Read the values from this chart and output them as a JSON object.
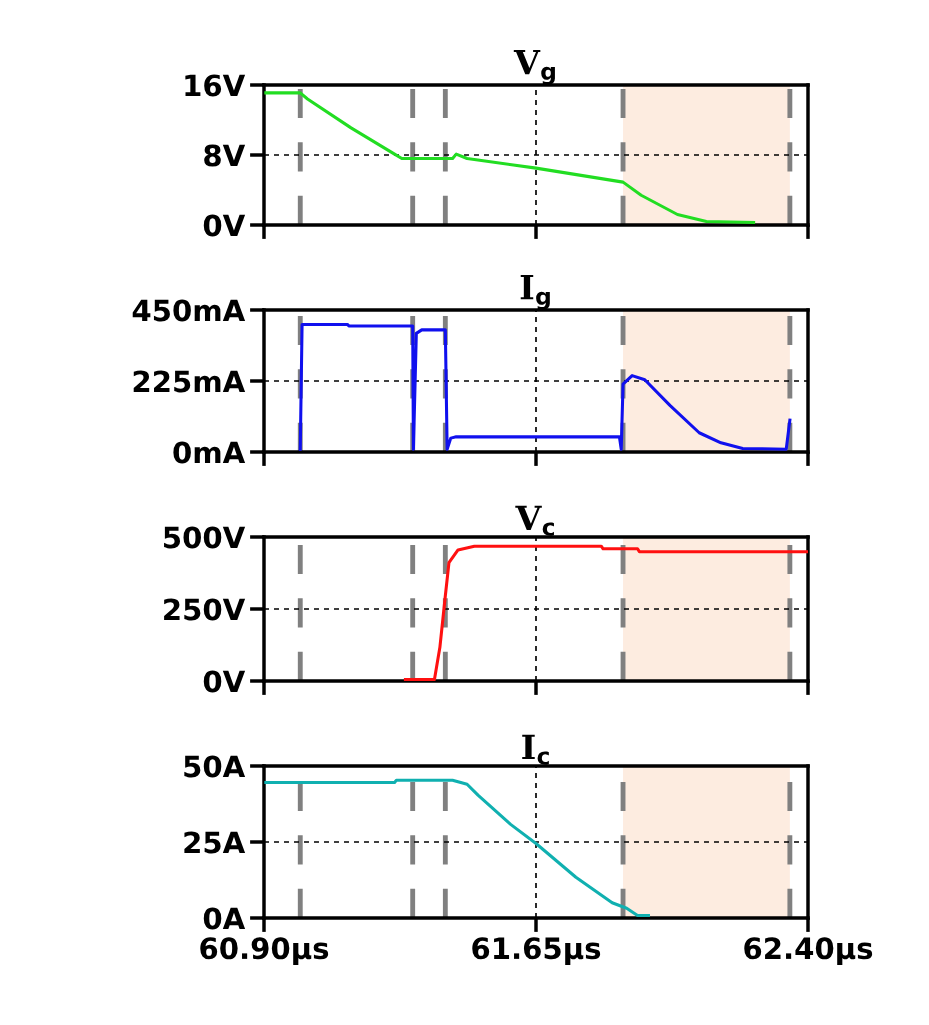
{
  "chart_data": [
    {
      "type": "line",
      "title": "V$_{g}$",
      "xlim": [
        60.9,
        62.4
      ],
      "xticks": [
        {
          "value": 60.9,
          "label": null
        },
        {
          "value": 61.65,
          "label": null
        },
        {
          "value": 62.4,
          "label": null
        }
      ],
      "ylim": [
        0,
        16
      ],
      "yticks": [
        {
          "value": 0,
          "label": "0V"
        },
        {
          "value": 8,
          "label": "8V"
        },
        {
          "value": 16,
          "label": "16V"
        }
      ],
      "tick_labels": "y",
      "grid": true,
      "series": [
        {
          "color": "#22dd22",
          "x": [
            60.905,
            61.0,
            61.02,
            61.14,
            61.26,
            61.28,
            61.42,
            61.43,
            61.46,
            61.65,
            61.86,
            61.89,
            61.94,
            62.04,
            62.12,
            62.25
          ],
          "values": [
            15.1,
            15.1,
            14.4,
            11.1,
            8.1,
            7.6,
            7.6,
            8.1,
            7.6,
            6.5,
            5.1,
            4.9,
            3.4,
            1.2,
            0.4,
            0.3
          ]
        }
      ],
      "ref_lines": [
        {
          "axis": "x",
          "value": 61.0,
          "color": "#808080",
          "line_style": "dashed"
        },
        {
          "axis": "x",
          "value": 61.31,
          "color": "#808080",
          "line_style": "dashed"
        },
        {
          "axis": "x",
          "value": 61.4,
          "color": "#808080",
          "line_style": "dashed"
        },
        {
          "axis": "x",
          "value": 61.89,
          "color": "#808080",
          "line_style": "dashed"
        },
        {
          "axis": "x",
          "value": 62.35,
          "color": "#808080",
          "line_style": "dashed"
        }
      ],
      "bands": [
        {
          "axis": "x",
          "from": 61.89,
          "to": 62.35,
          "color": "#fdece0"
        }
      ]
    },
    {
      "type": "line",
      "title": "I$_{g}$",
      "xlim": [
        60.9,
        62.4
      ],
      "xticks": [
        {
          "value": 60.9,
          "label": null
        },
        {
          "value": 61.65,
          "label": null
        },
        {
          "value": 62.4,
          "label": null
        }
      ],
      "ylim": [
        0,
        450
      ],
      "yticks": [
        {
          "value": 0,
          "label": "0mA"
        },
        {
          "value": 225,
          "label": "225mA"
        },
        {
          "value": 450,
          "label": "450mA"
        }
      ],
      "tick_labels": "y",
      "grid": true,
      "series": [
        {
          "color": "#1010ee",
          "x": [
            61.0,
            61.005,
            61.13,
            61.135,
            61.31,
            61.312,
            61.32,
            61.335,
            61.4,
            61.405,
            61.415,
            61.43,
            61.88,
            61.885,
            61.89,
            61.915,
            61.95,
            62.02,
            62.1,
            62.16,
            62.22,
            62.34,
            62.35
          ],
          "values": [
            9,
            404,
            404,
            399,
            399,
            9,
            376,
            387,
            387,
            9,
            44,
            48,
            48,
            9,
            215,
            242,
            229,
            147,
            61,
            29,
            11,
            9,
            101
          ]
        }
      ],
      "ref_lines": [
        {
          "axis": "x",
          "value": 61.0,
          "color": "#808080",
          "line_style": "dashed"
        },
        {
          "axis": "x",
          "value": 61.31,
          "color": "#808080",
          "line_style": "dashed"
        },
        {
          "axis": "x",
          "value": 61.4,
          "color": "#808080",
          "line_style": "dashed"
        },
        {
          "axis": "x",
          "value": 61.89,
          "color": "#808080",
          "line_style": "dashed"
        },
        {
          "axis": "x",
          "value": 62.35,
          "color": "#808080",
          "line_style": "dashed"
        }
      ],
      "bands": [
        {
          "axis": "x",
          "from": 61.89,
          "to": 62.35,
          "color": "#fdece0"
        }
      ]
    },
    {
      "type": "line",
      "title": "V$_{c}$",
      "xlim": [
        60.9,
        62.4
      ],
      "xticks": [
        {
          "value": 60.9,
          "label": null
        },
        {
          "value": 61.65,
          "label": null
        },
        {
          "value": 62.4,
          "label": null
        }
      ],
      "ylim": [
        0,
        500
      ],
      "yticks": [
        {
          "value": 0,
          "label": "0V"
        },
        {
          "value": 250,
          "label": "250V"
        },
        {
          "value": 500,
          "label": "500V"
        }
      ],
      "tick_labels": "y",
      "grid": true,
      "series": [
        {
          "color": "#ff1010",
          "x": [
            61.29,
            61.37,
            61.385,
            61.4,
            61.41,
            61.435,
            61.48,
            61.83,
            61.835,
            61.93,
            61.935,
            62.4
          ],
          "values": [
            5,
            5,
            117,
            296,
            411,
            455,
            468,
            468,
            459,
            459,
            449,
            449
          ]
        }
      ],
      "ref_lines": [
        {
          "axis": "x",
          "value": 61.0,
          "color": "#808080",
          "line_style": "dashed"
        },
        {
          "axis": "x",
          "value": 61.31,
          "color": "#808080",
          "line_style": "dashed"
        },
        {
          "axis": "x",
          "value": 61.4,
          "color": "#808080",
          "line_style": "dashed"
        },
        {
          "axis": "x",
          "value": 61.89,
          "color": "#808080",
          "line_style": "dashed"
        },
        {
          "axis": "x",
          "value": 62.35,
          "color": "#808080",
          "line_style": "dashed"
        }
      ],
      "bands": [
        {
          "axis": "x",
          "from": 61.89,
          "to": 62.35,
          "color": "#fdece0"
        }
      ]
    },
    {
      "type": "line",
      "title": "I$_{c}$",
      "xlim": [
        60.9,
        62.4
      ],
      "xticks": [
        {
          "value": 60.9,
          "label": "60.90µs"
        },
        {
          "value": 61.65,
          "label": "61.65µs"
        },
        {
          "value": 62.4,
          "label": "62.40µs"
        }
      ],
      "ylim": [
        0,
        50
      ],
      "yticks": [
        {
          "value": 0,
          "label": "0A"
        },
        {
          "value": 25,
          "label": "25A"
        },
        {
          "value": 50,
          "label": "50A"
        }
      ],
      "grid": true,
      "series": [
        {
          "color": "#10b0b0",
          "x": [
            60.905,
            61.26,
            61.265,
            61.42,
            61.46,
            61.49,
            61.58,
            61.65,
            61.76,
            61.86,
            61.9,
            61.93,
            61.96
          ],
          "values": [
            44.6,
            44.6,
            45.3,
            45.3,
            44,
            40.4,
            30.8,
            24.5,
            13.4,
            5,
            3.2,
            0.8,
            0.8
          ]
        }
      ],
      "ref_lines": [
        {
          "axis": "x",
          "value": 61.0,
          "color": "#808080",
          "line_style": "dashed"
        },
        {
          "axis": "x",
          "value": 61.31,
          "color": "#808080",
          "line_style": "dashed"
        },
        {
          "axis": "x",
          "value": 61.4,
          "color": "#808080",
          "line_style": "dashed"
        },
        {
          "axis": "x",
          "value": 61.89,
          "color": "#808080",
          "line_style": "dashed"
        },
        {
          "axis": "x",
          "value": 62.35,
          "color": "#808080",
          "line_style": "dashed"
        }
      ],
      "bands": [
        {
          "axis": "x",
          "from": 61.89,
          "to": 62.35,
          "color": "#fdece0"
        }
      ]
    }
  ]
}
